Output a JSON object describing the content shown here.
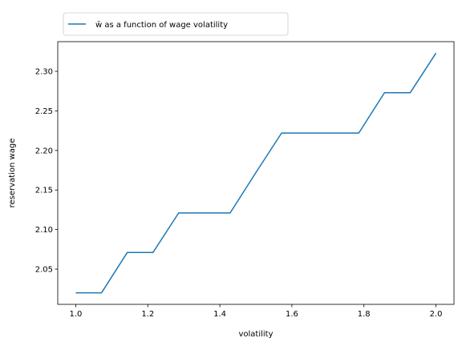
{
  "chart_data": {
    "type": "line",
    "xlabel": "volatility",
    "ylabel": "reservation wage",
    "xlim": [
      0.95,
      2.05
    ],
    "ylim": [
      2.0055,
      2.3375
    ],
    "x_ticks": [
      1.0,
      1.2,
      1.4,
      1.6,
      1.8,
      2.0
    ],
    "x_tick_labels": [
      "1.0",
      "1.2",
      "1.4",
      "1.6",
      "1.8",
      "2.0"
    ],
    "y_ticks": [
      2.05,
      2.1,
      2.15,
      2.2,
      2.25,
      2.3
    ],
    "y_tick_labels": [
      "2.05",
      "2.10",
      "2.15",
      "2.20",
      "2.25",
      "2.30"
    ],
    "grid": false,
    "legend_position": "top-left",
    "series": [
      {
        "name": "w̄ as a function of wage volatility",
        "color": "#1f77b4",
        "x": [
          1.0,
          1.0714,
          1.1429,
          1.2143,
          1.2857,
          1.3571,
          1.4286,
          1.5,
          1.5714,
          1.6429,
          1.7143,
          1.7857,
          1.8571,
          1.9286,
          2.0
        ],
        "y": [
          2.02,
          2.02,
          2.071,
          2.071,
          2.121,
          2.121,
          2.121,
          2.172,
          2.222,
          2.222,
          2.222,
          2.222,
          2.273,
          2.273,
          2.323
        ]
      }
    ]
  }
}
